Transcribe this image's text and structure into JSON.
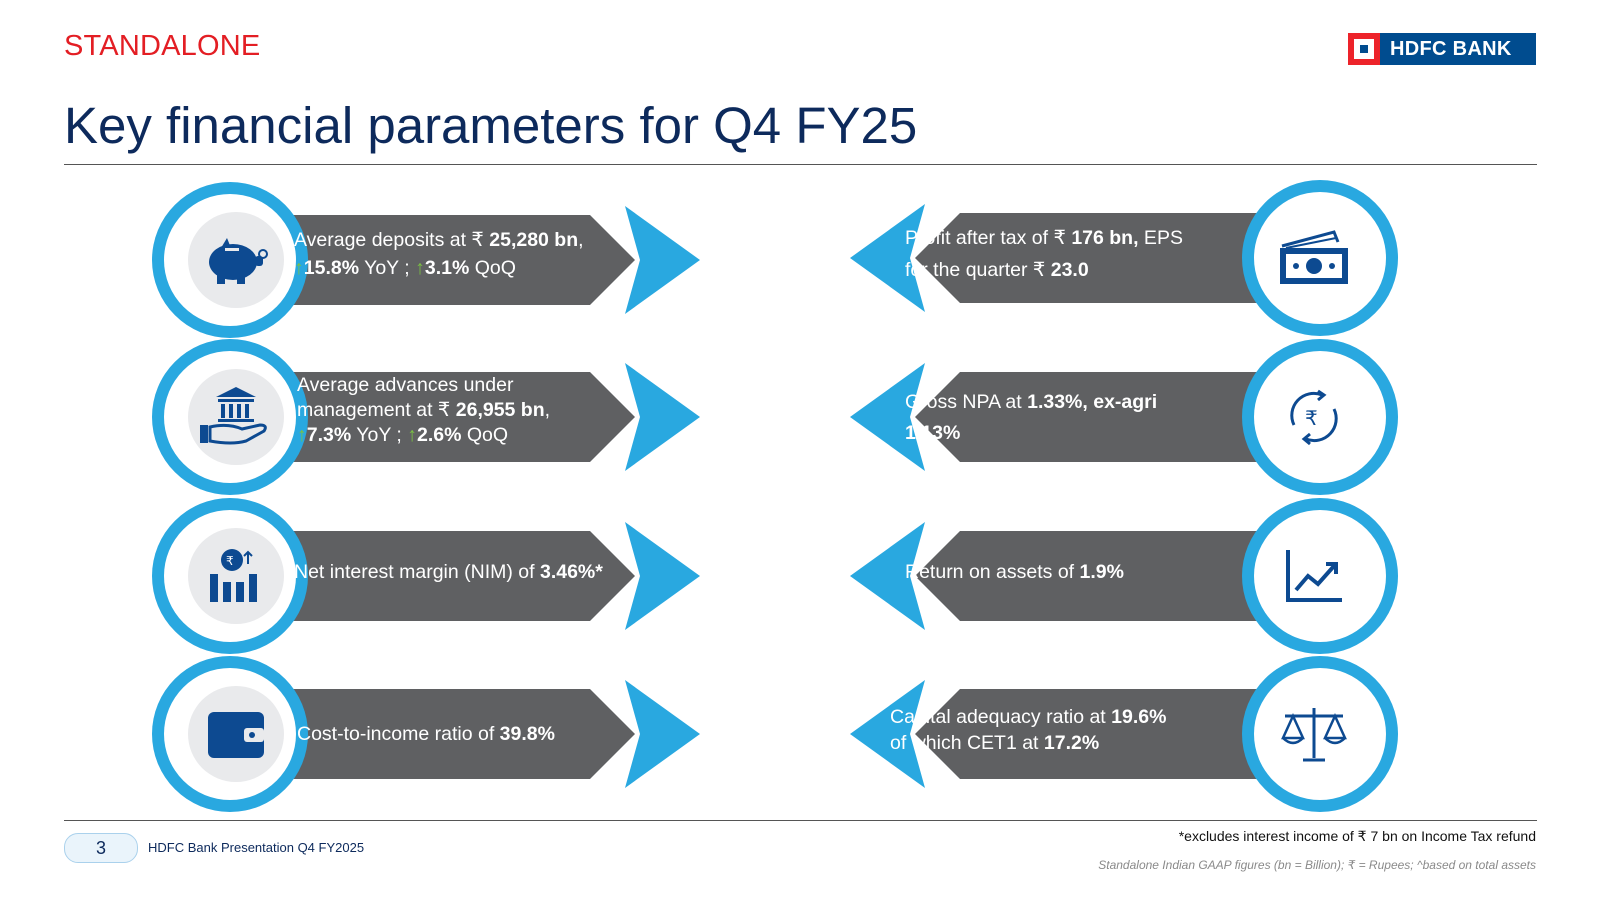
{
  "header": {
    "section_tag": "STANDALONE",
    "title": "Key financial parameters for Q4 FY25",
    "logo_text": "HDFC BANK"
  },
  "colors": {
    "accent_blue": "#29a8e0",
    "panel_grey": "#5f6062",
    "navy": "#0d2a5c",
    "up_green": "#7ac143",
    "brand_red": "#e31e24"
  },
  "left_items": [
    {
      "icon": "piggy-bank-icon",
      "line1_pre": "Average deposits at ₹ ",
      "line1_bold": "25,280 bn",
      "line1_post": ",",
      "yoy": "15.8%",
      "yoy_label": " YoY ; ",
      "qoq": "3.1%",
      "qoq_label": " QoQ"
    },
    {
      "icon": "bank-hand-icon",
      "line1": "Average advances under",
      "line2_pre": "management at ₹ ",
      "line2_bold": "26,955 bn",
      "line2_post": ",",
      "yoy": "7.3%",
      "yoy_label": " YoY ; ",
      "qoq": "2.6%",
      "qoq_label": " QoQ"
    },
    {
      "icon": "interest-chart-icon",
      "text_pre": "Net interest margin (NIM) of ",
      "text_bold": "3.46%*"
    },
    {
      "icon": "wallet-icon",
      "text_pre": "Cost-to-income ratio of ",
      "text_bold": "39.8%"
    }
  ],
  "right_items": [
    {
      "icon": "cash-icon",
      "line1_pre": "Profit after tax of ₹ ",
      "line1_bold": "176 bn,",
      "line1_post": " EPS",
      "line2_pre": "for the quarter ₹ ",
      "line2_bold": "23.0"
    },
    {
      "icon": "rupee-cycle-icon",
      "line1_pre": "Gross NPA at ",
      "line1_bold": "1.33%, ex-agri",
      "line2_bold": "1.13%"
    },
    {
      "icon": "growth-chart-icon",
      "text_pre": "Return on assets of ",
      "text_bold": "1.9%"
    },
    {
      "icon": "balance-scale-icon",
      "line1_pre": "Capital adequacy ratio at ",
      "line1_bold": "19.6%",
      "line2_pre": "of which CET1 at ",
      "line2_bold": "17.2%"
    }
  ],
  "footer": {
    "page_number": "3",
    "presentation_name": "HDFC Bank Presentation Q4 FY2025",
    "footnote": "*excludes interest income of ₹ 7 bn on Income Tax refund",
    "disclaimer": "Standalone Indian GAAP figures (bn = Billion); ₹  = Rupees; ^based on total assets"
  }
}
